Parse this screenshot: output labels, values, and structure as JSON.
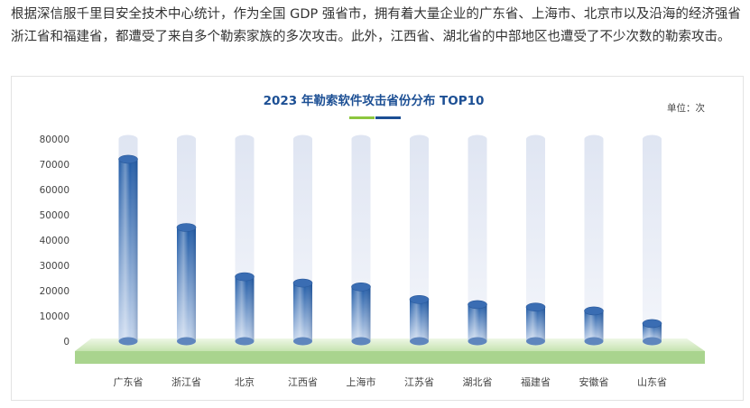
{
  "article": {
    "paragraph": "根据深信服千里目安全技术中心统计，作为全国 GDP 强省市，拥有着大量企业的广东省、上海市、北京市以及沿海的经济强省浙江省和福建省，都遭受了来自多个勒索家族的多次攻击。此外，江西省、湖北省的中部地区也遭受了不少次数的勒索攻击。"
  },
  "colors": {
    "bar_top": "#1f5aa6",
    "bar_bottom": "#bcd0ea",
    "track": "#e4e9f4",
    "platform": "#a9d48e",
    "platform_top": "#cfe8bd",
    "title": "#1c4f94",
    "accent_green": "#8cc63f",
    "accent_blue": "#1c4f94"
  },
  "chart_data": {
    "type": "bar",
    "title": "2023 年勒索软件攻击省份分布 TOP10",
    "unit_label": "单位：次",
    "categories": [
      "广东省",
      "浙江省",
      "北京",
      "江西省",
      "上海市",
      "江苏省",
      "湖北省",
      "福建省",
      "安徽省",
      "山东省"
    ],
    "values": [
      72000,
      45000,
      25500,
      23000,
      21500,
      16500,
      14500,
      13500,
      12000,
      7000
    ],
    "ylim": [
      0,
      80000
    ],
    "yticks": [
      "0",
      "10000",
      "20000",
      "30000",
      "40000",
      "50000",
      "60000",
      "70000",
      "80000"
    ],
    "xlabel": "",
    "ylabel": "",
    "grid": false,
    "legend": "none"
  }
}
